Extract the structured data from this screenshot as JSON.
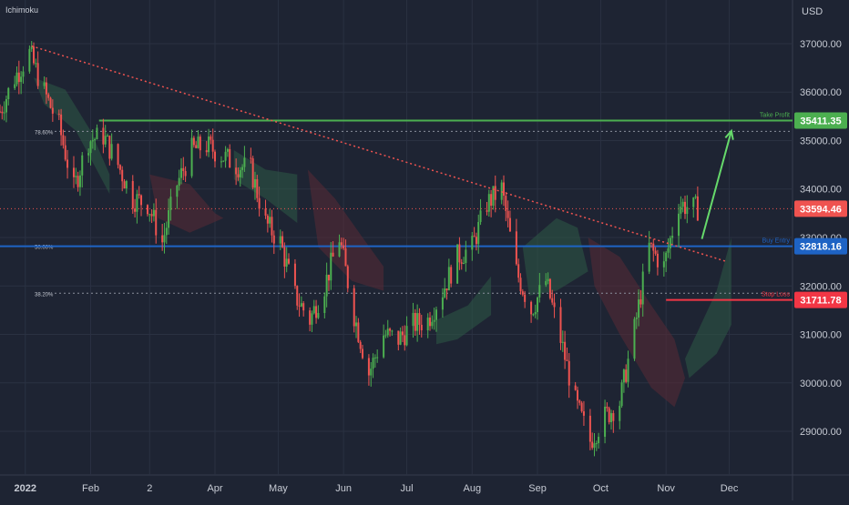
{
  "indicator_label": "Ichimoku",
  "currency_label": "USD",
  "colors": {
    "background": "#1e2433",
    "grid": "#2a3142",
    "axis_text": "#c7cbd4",
    "bull": "#26a69a",
    "bull_candle": "#4caf50",
    "bear": "#ef5350",
    "take_profit": "#4caf50",
    "buy_entry": "#1e63c4",
    "stop_loss": "#f23645",
    "current_price": "#ef5350",
    "trendline": "#ef5350",
    "arrow": "#66d96b",
    "cloud_bull": "#2e5a45",
    "cloud_bear": "#5a2a35",
    "fib": "#8a8f9c"
  },
  "chart_data": {
    "type": "candlestick",
    "instrument_currency": "USD",
    "x_ticks": [
      "2022",
      "Feb",
      "2",
      "Apr",
      "May",
      "Jun",
      "Jul",
      "Aug",
      "Sep",
      "Oct",
      "Nov",
      "Dec"
    ],
    "y_ticks": [
      "37000.00",
      "36000.00",
      "35000.00",
      "34000.00",
      "33000.00",
      "32000.00",
      "31000.00",
      "30000.00",
      "29000.00"
    ],
    "ylim": [
      28100,
      37900
    ],
    "levels": [
      {
        "name": "Take Profit",
        "price": 35411.35,
        "price_label": "35411.35",
        "text": "Take Profit"
      },
      {
        "name": "Buy Entry",
        "price": 32818.16,
        "price_label": "32818.16",
        "text": "Buy Entry"
      },
      {
        "name": "Stop Loss",
        "price": 31711.78,
        "price_label": "31711.78",
        "text": "Stop Loss"
      },
      {
        "name": "Current",
        "price": 33594.46,
        "price_label": "33594.46"
      }
    ],
    "fib_levels": [
      {
        "label": "78.60%",
        "price": 35190
      },
      {
        "label": "50.00%",
        "price": 32818
      },
      {
        "label": "38.20%",
        "price": 31850
      }
    ],
    "trendline": {
      "from": {
        "date": "2022-01-04",
        "price": 36950
      },
      "to": {
        "date": "2022-11-30",
        "price": 32500
      }
    },
    "projection_arrow": {
      "from": {
        "date": "2022-11-18",
        "price": 32970
      },
      "to": {
        "date": "2022-12-02",
        "price": 35200
      }
    },
    "approx_closes": [
      [
        "2021-12-20",
        35600
      ],
      [
        "2021-12-27",
        36300
      ],
      [
        "2022-01-03",
        36800
      ],
      [
        "2022-01-10",
        36000
      ],
      [
        "2022-01-17",
        35300
      ],
      [
        "2022-01-24",
        34000
      ],
      [
        "2022-01-31",
        35000
      ],
      [
        "2022-02-07",
        35100
      ],
      [
        "2022-02-14",
        34500
      ],
      [
        "2022-02-21",
        33800
      ],
      [
        "2022-02-28",
        33700
      ],
      [
        "2022-03-07",
        32900
      ],
      [
        "2022-03-14",
        34100
      ],
      [
        "2022-03-21",
        34800
      ],
      [
        "2022-03-28",
        34900
      ],
      [
        "2022-04-04",
        34700
      ],
      [
        "2022-04-11",
        34500
      ],
      [
        "2022-04-18",
        34400
      ],
      [
        "2022-04-25",
        33300
      ],
      [
        "2022-05-02",
        32900
      ],
      [
        "2022-05-09",
        31800
      ],
      [
        "2022-05-16",
        31300
      ],
      [
        "2022-05-23",
        32000
      ],
      [
        "2022-05-30",
        33000
      ],
      [
        "2022-06-06",
        31400
      ],
      [
        "2022-06-13",
        30200
      ],
      [
        "2022-06-20",
        31000
      ],
      [
        "2022-06-27",
        30900
      ],
      [
        "2022-07-04",
        31200
      ],
      [
        "2022-07-11",
        31300
      ],
      [
        "2022-07-18",
        31900
      ],
      [
        "2022-07-25",
        32600
      ],
      [
        "2022-08-01",
        32800
      ],
      [
        "2022-08-08",
        33700
      ],
      [
        "2022-08-15",
        34000
      ],
      [
        "2022-08-22",
        32300
      ],
      [
        "2022-08-29",
        31500
      ],
      [
        "2022-09-05",
        32100
      ],
      [
        "2022-09-12",
        30900
      ],
      [
        "2022-09-19",
        29600
      ],
      [
        "2022-09-26",
        28800
      ],
      [
        "2022-10-03",
        29300
      ],
      [
        "2022-10-10",
        29600
      ],
      [
        "2022-10-17",
        31100
      ],
      [
        "2022-10-24",
        32800
      ],
      [
        "2022-10-31",
        32400
      ],
      [
        "2022-11-07",
        33700
      ],
      [
        "2022-11-14",
        33600
      ]
    ]
  }
}
